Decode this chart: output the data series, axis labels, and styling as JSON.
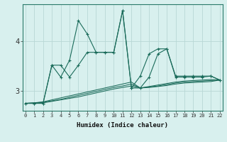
{
  "xlabel": "Humidex (Indice chaleur)",
  "background_color": "#d8f0ee",
  "grid_color": "#b8d8d5",
  "line_color": "#1a6b5a",
  "x_ticks": [
    0,
    1,
    2,
    3,
    4,
    5,
    6,
    7,
    8,
    9,
    10,
    11,
    12,
    13,
    14,
    15,
    16,
    17,
    18,
    19,
    20,
    21,
    22
  ],
  "y_ticks": [
    3,
    4
  ],
  "ylim": [
    2.6,
    4.75
  ],
  "xlim": [
    -0.3,
    22.3
  ],
  "series_spiky1": [
    2.75,
    2.75,
    2.75,
    3.52,
    3.28,
    3.62,
    4.42,
    4.15,
    3.78,
    3.78,
    3.78,
    4.62,
    3.06,
    3.3,
    3.75,
    3.85,
    3.85,
    3.3,
    3.3,
    3.3,
    3.3,
    3.3,
    3.22
  ],
  "series_spiky2": [
    2.75,
    2.75,
    2.75,
    3.52,
    3.52,
    3.28,
    3.52,
    3.78,
    3.78,
    3.78,
    3.78,
    4.62,
    3.06,
    3.06,
    3.28,
    3.75,
    3.85,
    3.28,
    3.28,
    3.28,
    3.28,
    3.3,
    3.22
  ],
  "series_flat1": [
    2.75,
    2.76,
    2.78,
    2.82,
    2.86,
    2.9,
    2.94,
    2.98,
    3.02,
    3.06,
    3.1,
    3.14,
    3.18,
    3.06,
    3.09,
    3.12,
    3.15,
    3.18,
    3.2,
    3.21,
    3.22,
    3.23,
    3.22
  ],
  "series_flat2": [
    2.75,
    2.76,
    2.77,
    2.8,
    2.83,
    2.87,
    2.91,
    2.95,
    2.99,
    3.03,
    3.07,
    3.1,
    3.14,
    3.06,
    3.08,
    3.1,
    3.13,
    3.16,
    3.18,
    3.19,
    3.2,
    3.21,
    3.22
  ],
  "series_flat3": [
    2.75,
    2.75,
    2.76,
    2.79,
    2.82,
    2.85,
    2.88,
    2.92,
    2.96,
    3.0,
    3.04,
    3.07,
    3.1,
    3.06,
    3.07,
    3.09,
    3.11,
    3.14,
    3.16,
    3.17,
    3.18,
    3.19,
    3.22
  ]
}
